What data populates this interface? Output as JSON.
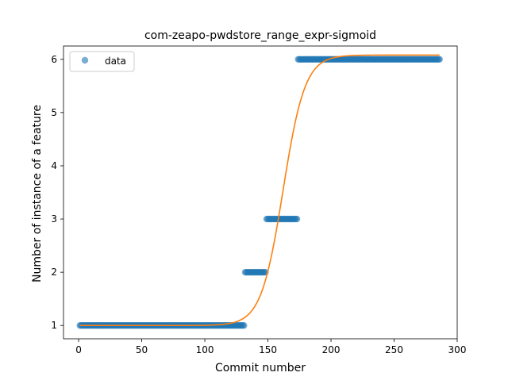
{
  "chart_data": {
    "type": "scatter",
    "title": "com-zeapo-pwdstore_range_expr-sigmoid",
    "xlabel": "Commit number",
    "ylabel": "Number of instance of a feature",
    "xlim": [
      -12,
      300
    ],
    "ylim": [
      0.75,
      6.25
    ],
    "xticks": [
      0,
      50,
      100,
      150,
      200,
      250,
      300
    ],
    "yticks": [
      1,
      2,
      3,
      4,
      5,
      6
    ],
    "grid": false,
    "legend": {
      "placement": "top-left",
      "entries": [
        "data"
      ]
    },
    "series": [
      {
        "name": "data",
        "kind": "points",
        "color": "#1f77b4",
        "segments": [
          {
            "x_start": 1,
            "x_end": 131,
            "y": 1
          },
          {
            "x_start": 132,
            "x_end": 148,
            "y": 2
          },
          {
            "x_start": 149,
            "x_end": 173,
            "y": 3
          },
          {
            "x_start": 174,
            "x_end": 286,
            "y": 6
          }
        ]
      },
      {
        "kind": "line",
        "color": "#ff7f0e",
        "sigmoid": {
          "low": 1.0,
          "high": 6.08,
          "x0": 162,
          "k": 0.115,
          "x_start": 1,
          "x_end": 286
        }
      }
    ]
  }
}
